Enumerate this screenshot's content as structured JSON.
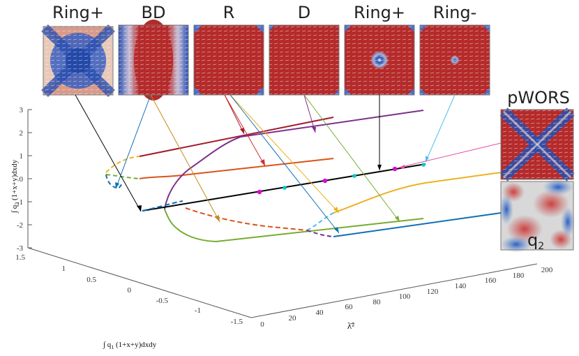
{
  "panels": [
    {
      "label": "Ring+"
    },
    {
      "label": "BD"
    },
    {
      "label": "R"
    },
    {
      "label": "D"
    },
    {
      "label": "Ring+"
    },
    {
      "label": "Ring-"
    }
  ],
  "side_panels": {
    "top_label": "pWORS",
    "bottom_label": "q",
    "bottom_subscript": "2"
  },
  "axes": {
    "z_label_prefix": "∫ q",
    "z_label_sub": "2",
    "z_label_suffix": " (1+x+y)dxdy",
    "x_label_prefix": "∫ q",
    "x_label_sub": "1",
    "x_label_suffix": " (1+x+y)dxdy",
    "lambda_label": "λ̄²",
    "z_ticks": [
      "3",
      "2",
      "1",
      "0",
      "-1",
      "-2",
      "-3"
    ],
    "x_ticks": [
      "1.5",
      "1",
      "0.5",
      "0",
      "-0.5",
      "-1",
      "-1.5"
    ],
    "lambda_ticks": [
      "0",
      "20",
      "40",
      "60",
      "80",
      "100",
      "120",
      "140",
      "160",
      "180",
      "200"
    ]
  },
  "colors": {
    "dark_red": "#a3192b",
    "orange": "#d95319",
    "purple": "#7e2f8e",
    "yellow": "#edb120",
    "green": "#77ac30",
    "blue": "#0f6fb3",
    "black": "#000000",
    "cyan": "#4dbeee",
    "magenta": "#e000e0",
    "pink": "#e34fa0"
  }
}
